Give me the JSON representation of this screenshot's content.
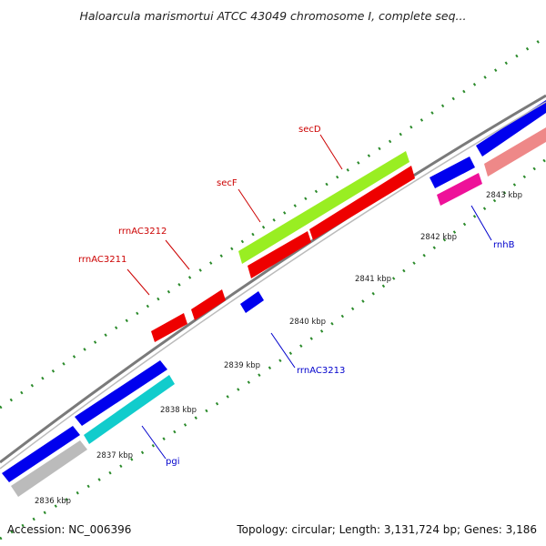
{
  "title": "Haloarcula marismortui ATCC 43049 chromosome I, complete seq...",
  "accession": "Accession: NC_006396",
  "topology": "Topology: circular; Length: 3,131,724 bp; Genes: 3,186",
  "ticks": [
    {
      "label": "2836 kbp"
    },
    {
      "label": "2837 kbp"
    },
    {
      "label": "2838 kbp"
    },
    {
      "label": "2839 kbp"
    },
    {
      "label": "2840 kbp"
    },
    {
      "label": "2841 kbp"
    },
    {
      "label": "2842 kbp"
    },
    {
      "label": "2843 kbp"
    }
  ],
  "gene_labels": [
    {
      "text": "secD",
      "color": "#cc0000"
    },
    {
      "text": "secF",
      "color": "#cc0000"
    },
    {
      "text": "rrnAC3212",
      "color": "#cc0000"
    },
    {
      "text": "rrnAC3211",
      "color": "#cc0000"
    },
    {
      "text": "rnhB",
      "color": "#0000cc"
    },
    {
      "text": "rrnAC3213",
      "color": "#0000cc"
    },
    {
      "text": "pgi",
      "color": "#0000cc"
    }
  ],
  "colors": {
    "backbone": "#7a7a7a",
    "tick_green": "#2a8a2a",
    "forward_red": "#ee0000",
    "reverse_blue": "#0000ee",
    "lime": "#99ee22",
    "cyan": "#11cccc",
    "gray_feature": "#bbbbbb",
    "magenta": "#ee1199",
    "salmon": "#ee8888"
  }
}
